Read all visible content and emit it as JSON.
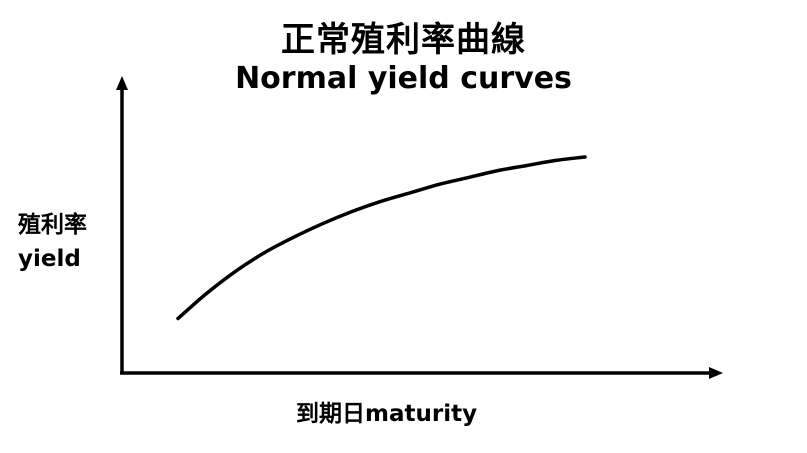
{
  "chart_data": {
    "type": "line",
    "title": "正常殖利率曲線",
    "subtitle": "Normal yield curves",
    "ylabel_zh": "殖利率",
    "ylabel_en": "yield",
    "xlabel": "到期日maturity",
    "grid": false,
    "legend": "none",
    "line_color": "#000000",
    "axis_color": "#000000",
    "series": [
      {
        "values": [
          0.05,
          0.2,
          0.33,
          0.44,
          0.53,
          0.61,
          0.68,
          0.74,
          0.79,
          0.84,
          0.88,
          0.92,
          0.95,
          0.98,
          1.0
        ]
      }
    ]
  }
}
